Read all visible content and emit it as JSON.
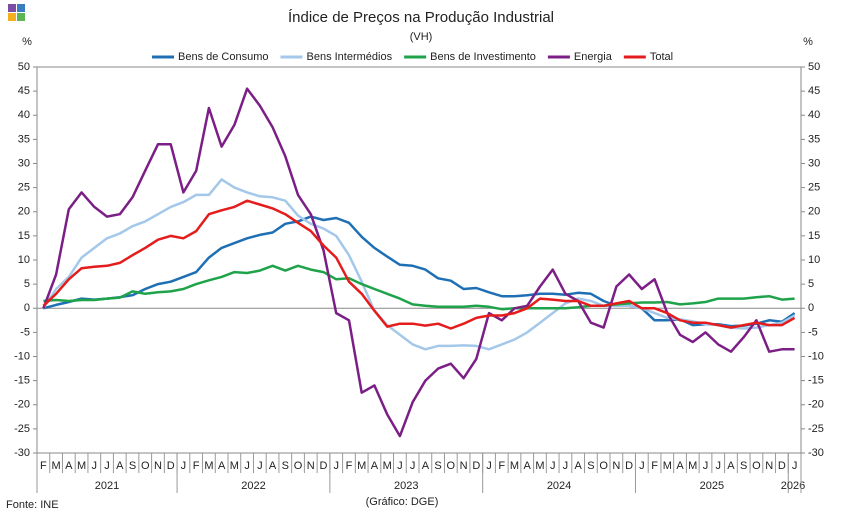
{
  "chart_data": {
    "type": "line",
    "title": "Índice de Preços na Produção Industrial",
    "subtitle": "(VH)",
    "y_unit": "%",
    "source": "Fonte: INE",
    "credit": "(Gráfico: DGE)",
    "legend": "top",
    "grid": false,
    "ylim": [
      -30,
      50
    ],
    "yticks": [
      -30,
      -25,
      -20,
      -15,
      -10,
      -5,
      0,
      5,
      10,
      15,
      20,
      25,
      30,
      35,
      40,
      45,
      50
    ],
    "categories": [
      "F",
      "M",
      "A",
      "M",
      "J",
      "J",
      "A",
      "S",
      "O",
      "N",
      "D",
      "J",
      "F",
      "M",
      "A",
      "M",
      "J",
      "J",
      "A",
      "S",
      "O",
      "N",
      "D",
      "J",
      "F",
      "M",
      "A",
      "M",
      "J",
      "J",
      "A",
      "S",
      "O",
      "N",
      "D",
      "J",
      "F",
      "M",
      "A",
      "M",
      "J",
      "J",
      "A",
      "S",
      "O",
      "N",
      "D",
      "J",
      "F",
      "M",
      "A",
      "M",
      "J",
      "J",
      "A",
      "S",
      "O",
      "N",
      "D",
      "J"
    ],
    "years": [
      "2021",
      "2022",
      "2023",
      "2024",
      "2025",
      "2026"
    ],
    "series": [
      {
        "name": "Bens de Consumo",
        "color": "#1f6fb4",
        "values": [
          0,
          0.7,
          1.3,
          2,
          1.8,
          2,
          2.3,
          2.7,
          4,
          5,
          5.5,
          6.5,
          7.5,
          10.5,
          12.5,
          13.5,
          14.5,
          15.2,
          15.7,
          17.5,
          18,
          19,
          18.3,
          18.7,
          17.7,
          14.8,
          12.5,
          10.7,
          9,
          8.8,
          8,
          6.2,
          5.7,
          4,
          4.2,
          3.3,
          2.5,
          2.5,
          2.7,
          3,
          3,
          2.8,
          3.2,
          3,
          1.5,
          0.5,
          0.5,
          0,
          -2.5,
          -2.5,
          -2.3,
          -3.5,
          -3.3,
          -3.3,
          -3.7,
          -3.6,
          -3.2,
          -2.5,
          -2.8,
          -1
        ]
      },
      {
        "name": "Bens Intermédios",
        "color": "#a4c8ea",
        "values": [
          0,
          4,
          6.5,
          10.5,
          12.5,
          14.5,
          15.5,
          17,
          18,
          19.5,
          21,
          22,
          23.5,
          23.5,
          26.7,
          25,
          24,
          23.2,
          23,
          22.3,
          19.2,
          17.5,
          16.5,
          15,
          11,
          5.5,
          -0.5,
          -3.5,
          -5.5,
          -7.5,
          -8.5,
          -7.8,
          -7.8,
          -7.7,
          -7.8,
          -8.5,
          -7.5,
          -6.5,
          -5,
          -3,
          -1,
          1,
          2,
          1.5,
          0.5,
          0.5,
          0.5,
          0,
          -1,
          -2,
          -2.3,
          -2.7,
          -3.3,
          -3.5,
          -4,
          -4.2,
          -4,
          -3.5,
          -3,
          -1.5
        ]
      },
      {
        "name": "Bens de Investimento",
        "color": "#1fa34a",
        "values": [
          1.5,
          1.7,
          1.5,
          1.7,
          1.7,
          2,
          2.2,
          3.5,
          3,
          3.3,
          3.5,
          4,
          5,
          5.8,
          6.5,
          7.5,
          7.3,
          7.8,
          8.8,
          7.8,
          8.8,
          8,
          7.5,
          6,
          6.2,
          5,
          4,
          3,
          2,
          0.8,
          0.5,
          0.3,
          0.3,
          0.3,
          0.5,
          0.3,
          -0.2,
          0,
          0,
          0,
          0,
          0,
          0.2,
          0.5,
          0.5,
          0.8,
          1,
          1.2,
          1.2,
          1.3,
          0.8,
          1,
          1.3,
          2,
          2,
          2,
          2.3,
          2.5,
          1.8,
          2
        ]
      },
      {
        "name": "Energia",
        "color": "#7b1f86",
        "values": [
          0,
          7,
          20.5,
          24,
          21,
          19,
          19.5,
          23,
          28.5,
          34,
          34,
          24,
          28.5,
          41.5,
          33.5,
          38,
          45.5,
          42,
          37.5,
          31.5,
          23.5,
          19.5,
          12,
          -1,
          -2.5,
          -17.5,
          -16,
          -22,
          -26.5,
          -19.5,
          -15,
          -12.5,
          -11.5,
          -14.5,
          -10.5,
          -1,
          -2.5,
          0,
          0.5,
          4.5,
          8,
          3,
          1.5,
          -3,
          -4,
          4.5,
          7,
          4,
          6,
          -1,
          -5.5,
          -7,
          -5,
          -7.5,
          -9,
          -6,
          -2.5,
          -9,
          -8.5,
          -8.5
        ]
      },
      {
        "name": "Total",
        "color": "#e51c1c",
        "values": [
          0.5,
          3,
          6,
          8.3,
          8.6,
          8.8,
          9.4,
          11,
          12.5,
          14.2,
          15,
          14.5,
          16,
          19.5,
          20.3,
          21,
          22.3,
          21.5,
          20.7,
          19.5,
          17.7,
          16,
          13,
          10.5,
          5.5,
          3,
          -0.5,
          -3.8,
          -3.2,
          -3.2,
          -3.6,
          -3.2,
          -4.2,
          -3.2,
          -2,
          -1.5,
          -1.5,
          -1,
          0,
          2,
          1.8,
          1.5,
          1.5,
          0.5,
          0.5,
          1,
          1.5,
          0,
          0,
          -1,
          -2.5,
          -3,
          -3,
          -3.5,
          -4,
          -3.5,
          -3,
          -3.5,
          -3.5,
          -2
        ]
      }
    ]
  }
}
